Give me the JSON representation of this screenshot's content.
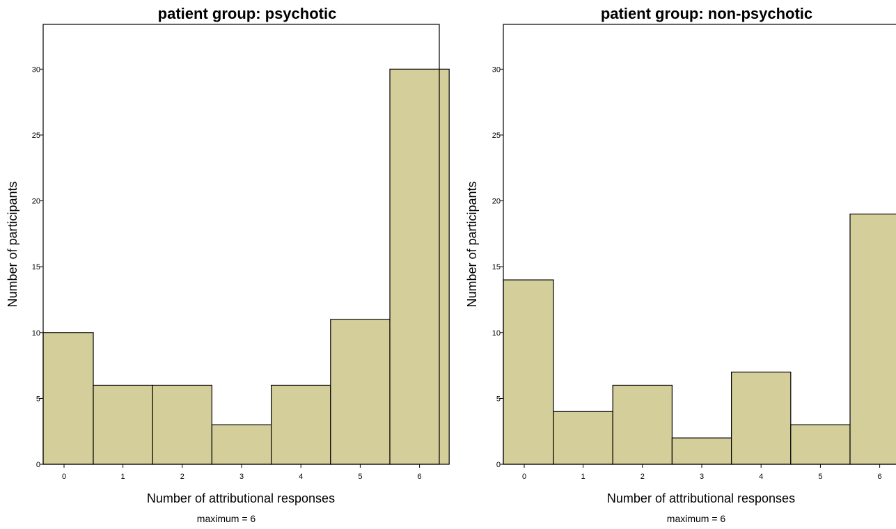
{
  "colors": {
    "bar_fill": "#d4cf9a",
    "bar_stroke": "#000000"
  },
  "chart_data": [
    {
      "type": "bar",
      "title": "patient group: psychotic",
      "xlabel": "Number of attributional responses",
      "ylabel": "Number of participants",
      "note": "maximum = 6",
      "categories": [
        "0",
        "1",
        "2",
        "3",
        "4",
        "5",
        "6"
      ],
      "values": [
        10,
        6,
        6,
        3,
        6,
        11,
        30
      ],
      "ylim": [
        0,
        33.4
      ],
      "yticks": [
        0,
        5,
        10,
        15,
        20,
        25,
        30
      ],
      "grid": false
    },
    {
      "type": "bar",
      "title": "patient group: non-psychotic",
      "xlabel": "Number of attributional responses",
      "ylabel": "Number of participants",
      "note": "maximum = 6",
      "categories": [
        "0",
        "1",
        "2",
        "3",
        "4",
        "5",
        "6"
      ],
      "values": [
        14,
        4,
        6,
        2,
        7,
        3,
        19
      ],
      "ylim": [
        0,
        33.4
      ],
      "yticks": [
        0,
        5,
        10,
        15,
        20,
        25,
        30
      ],
      "grid": false
    }
  ]
}
